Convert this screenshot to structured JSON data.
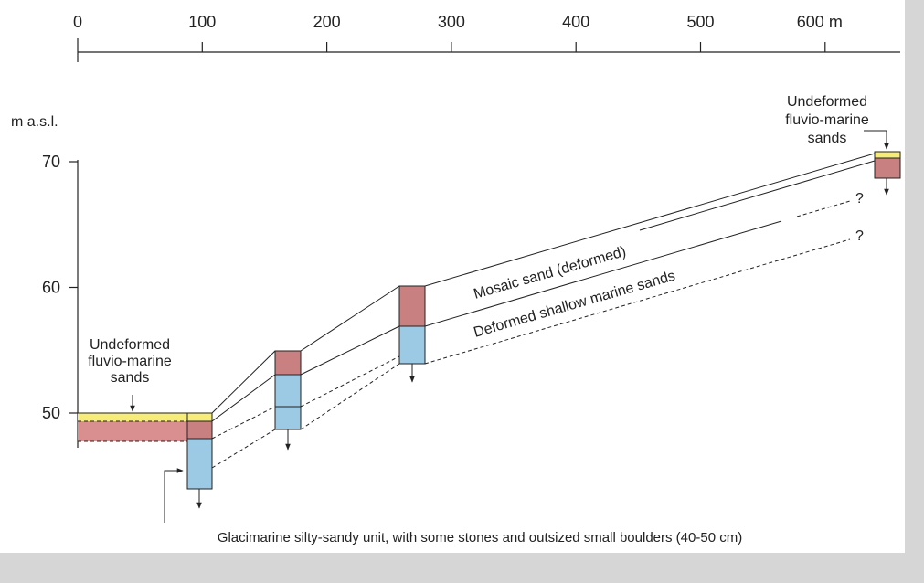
{
  "x_axis": {
    "ticks": [
      "0",
      "100",
      "200",
      "300",
      "400",
      "500",
      "600 m"
    ]
  },
  "y_axis": {
    "title": "m a.s.l.",
    "ticks": [
      "70",
      "60",
      "50"
    ]
  },
  "labels": {
    "left_unit": [
      "Undeformed",
      "fluvio-marine",
      "sands"
    ],
    "right_unit": [
      "Undeformed",
      "fluvio-marine",
      "sands"
    ],
    "mosaic": "Mosaic sand (deformed)",
    "shallow": "Deformed shallow marine sands",
    "unknown_upper": "?",
    "unknown_lower": "?",
    "glacimarine": "Glacimarine silty-sandy unit, with some stones and outsized small boulders (40-50 cm)"
  }
}
